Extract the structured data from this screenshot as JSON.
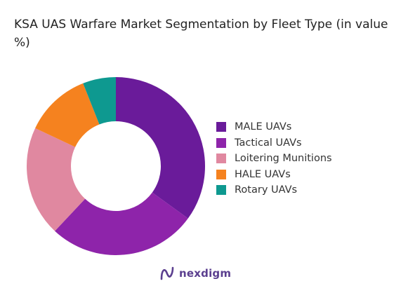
{
  "chart_data": {
    "type": "pie",
    "title": "KSA UAS Warfare Market Segmentation by Fleet Type (in value %)",
    "categories": [
      "MALE UAVs",
      "Tactical UAVs",
      "Loitering Munitions",
      "HALE UAVs",
      "Rotary UAVs"
    ],
    "values": [
      35,
      27,
      20,
      12,
      6
    ],
    "colors": [
      "#6a1b9a",
      "#8e24aa",
      "#e088a0",
      "#f5821f",
      "#0e9990"
    ],
    "legend_position": "right"
  },
  "brand": {
    "name": "nexdigm",
    "icon": "nexdigm-logo-icon"
  }
}
